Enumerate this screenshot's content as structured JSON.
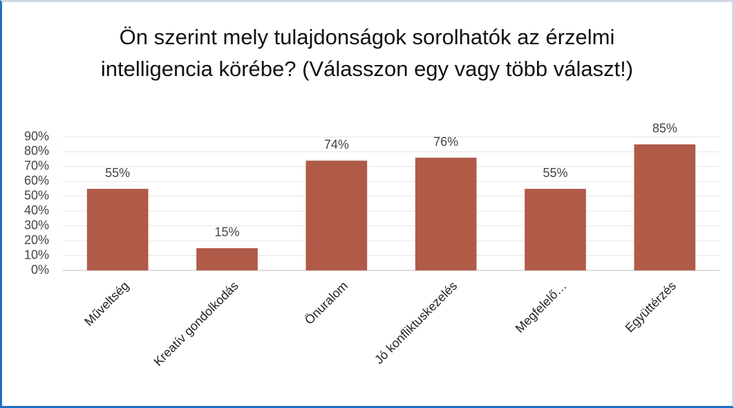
{
  "chart_data": {
    "type": "bar",
    "title": "Ön szerint mely tulajdonságok sorolhatók az érzelmi intelligencia körébe? (Válasszon egy vagy több választ!)",
    "categories": [
      "Műveltség",
      "Kreatív gondolkodás",
      "Önuralom",
      "Jó konfliktuskezelés",
      "Megfelelő…",
      "Együttérzés"
    ],
    "values": [
      55,
      15,
      74,
      76,
      55,
      85
    ],
    "value_labels": [
      "55%",
      "15%",
      "74%",
      "76%",
      "55%",
      "85%"
    ],
    "color": "#b05a48",
    "ylim": [
      0,
      90
    ],
    "yticks": [
      {
        "value": 0,
        "label": "0%"
      },
      {
        "value": 10,
        "label": "10%"
      },
      {
        "value": 20,
        "label": "20%"
      },
      {
        "value": 30,
        "label": "30%"
      },
      {
        "value": 40,
        "label": "40%"
      },
      {
        "value": 50,
        "label": "50%"
      },
      {
        "value": 60,
        "label": "60%"
      },
      {
        "value": 70,
        "label": "70%"
      },
      {
        "value": 80,
        "label": "80%"
      },
      {
        "value": 90,
        "label": "90%"
      }
    ],
    "grid": true
  }
}
